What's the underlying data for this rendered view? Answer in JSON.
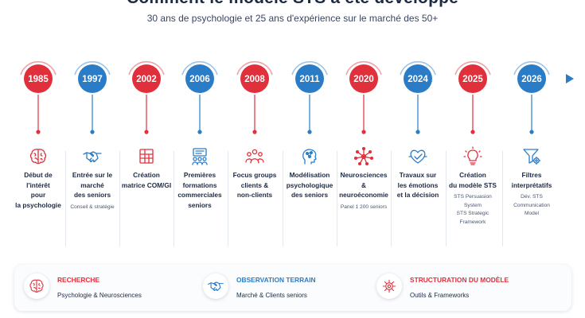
{
  "header": {
    "title": "Comment le modèle STS a été développé",
    "subtitle": "30 ans de psychologie et 25 ans d'expérience sur le marché des 50+"
  },
  "colors": {
    "red": "#e0303b",
    "blue": "#2a7cc7",
    "navy": "#1d2a44",
    "gray": "#4a5570"
  },
  "timeline": [
    {
      "year": "1985",
      "color": "red",
      "icon": "brain-icon",
      "label": [
        "Début de",
        "l'intérêt",
        "pour",
        "la psychologie"
      ],
      "note": []
    },
    {
      "year": "1997",
      "color": "blue",
      "icon": "handshake-icon",
      "label": [
        "Entrée sur le",
        "marché",
        "des seniors"
      ],
      "note": [
        "Conseil & stratégie"
      ]
    },
    {
      "year": "2002",
      "color": "red",
      "icon": "grid-icon",
      "label": [
        "Création",
        "matrice COM/GI"
      ],
      "note": []
    },
    {
      "year": "2006",
      "color": "blue",
      "icon": "training-icon",
      "label": [
        "Premières",
        "formations",
        "commerciales",
        "seniors"
      ],
      "note": []
    },
    {
      "year": "2008",
      "color": "red",
      "icon": "group-icon",
      "label": [
        "Focus groups",
        "clients &",
        "non-clients"
      ],
      "note": []
    },
    {
      "year": "2011",
      "color": "blue",
      "icon": "network-head-icon",
      "label": [
        "Modélisation",
        "psychologique",
        "des seniors"
      ],
      "note": []
    },
    {
      "year": "2020",
      "color": "red",
      "icon": "neural-icon",
      "label": [
        "Neurosciences",
        "& neuroéconomie"
      ],
      "note": [
        "Panel 1 200 seniors"
      ]
    },
    {
      "year": "2024",
      "color": "blue",
      "icon": "heart-check-icon",
      "label": [
        "Travaux sur",
        "les émotions",
        "et la décision"
      ],
      "note": []
    },
    {
      "year": "2025",
      "color": "red",
      "icon": "lightbulb-icon",
      "label": [
        "Création",
        "du modèle STS"
      ],
      "note": [
        "STS Persuasion",
        "System",
        "STS Strategic",
        "Framework"
      ]
    },
    {
      "year": "2026",
      "color": "blue",
      "icon": "filter-gear-icon",
      "label": [
        "Filtres",
        "interprétatifs"
      ],
      "note": [
        "Dév. STS",
        "Communication",
        "Model"
      ]
    }
  ],
  "summary": [
    {
      "icon": "brain-icon",
      "heading": "RECHERCHE",
      "text": "Psychologie & Neurosciences",
      "color": "red"
    },
    {
      "icon": "handshake-icon",
      "heading": "OBSERVATION TERRAIN",
      "text": "Marché & Clients seniors",
      "color": "blue"
    },
    {
      "icon": "gear-icon",
      "heading": "STRUCTURATION DU MODÈLE",
      "text": "Outils & Frameworks",
      "color": "red"
    }
  ]
}
